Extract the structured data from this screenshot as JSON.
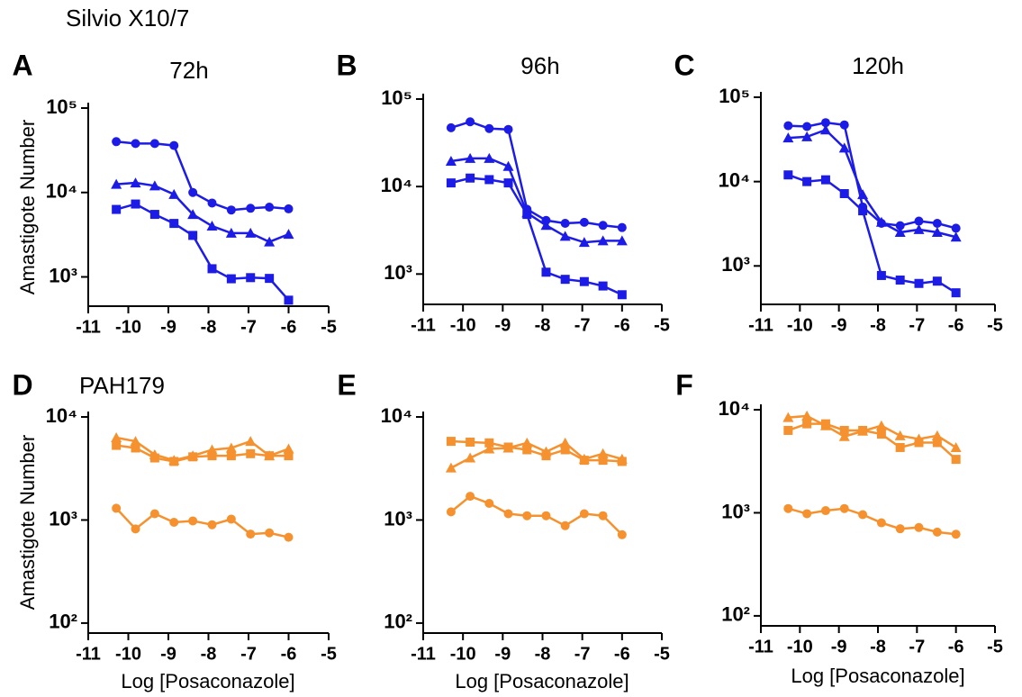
{
  "chart_data": [
    {
      "type": "line",
      "panel_label": "A",
      "title": "72h",
      "annotation": "Silvio X10/7",
      "ylabel": "Amastigote Number",
      "log_y": true,
      "x": [
        -10.3,
        -9.82,
        -9.34,
        -8.86,
        -8.39,
        -7.91,
        -7.43,
        -6.95,
        -6.48,
        -6
      ],
      "series": [
        {
          "marker": "circle",
          "color": "#1c1ce6",
          "values": [
            40000,
            38000,
            38000,
            36000,
            10000,
            7500,
            6200,
            6500,
            6700,
            6400
          ]
        },
        {
          "marker": "triangle",
          "color": "#1c1ce6",
          "values": [
            12500,
            13000,
            12000,
            9500,
            5500,
            4000,
            3300,
            3300,
            2600,
            3200
          ]
        },
        {
          "marker": "square",
          "color": "#1c1ce6",
          "values": [
            6300,
            7300,
            5500,
            4300,
            3100,
            1250,
            950,
            980,
            960,
            530
          ]
        }
      ],
      "xlim": [
        -11,
        -5
      ],
      "xticks": [
        -11,
        -10,
        -9,
        -8,
        -7,
        -6,
        -5
      ],
      "ylim": [
        450,
        100000
      ],
      "yticks": [
        {
          "value": 1000,
          "label": "10³"
        },
        {
          "value": 10000,
          "label": "10⁴"
        },
        {
          "value": 100000,
          "label": "10⁵"
        }
      ]
    },
    {
      "type": "line",
      "panel_label": "B",
      "title": "96h",
      "log_y": true,
      "x": [
        -10.3,
        -9.82,
        -9.34,
        -8.86,
        -8.39,
        -7.91,
        -7.43,
        -6.95,
        -6.48,
        -6
      ],
      "series": [
        {
          "marker": "circle",
          "color": "#1c1ce6",
          "values": [
            47000,
            55000,
            46000,
            45000,
            5500,
            4100,
            3800,
            3900,
            3600,
            3400
          ]
        },
        {
          "marker": "triangle",
          "color": "#1c1ce6",
          "values": [
            19500,
            21000,
            21000,
            17000,
            5000,
            3600,
            2700,
            2300,
            2400,
            2400
          ]
        },
        {
          "marker": "square",
          "color": "#1c1ce6",
          "values": [
            11000,
            12500,
            12000,
            11000,
            4800,
            1050,
            870,
            820,
            730,
            580
          ]
        }
      ],
      "xlim": [
        -11,
        -5
      ],
      "xticks": [
        -11,
        -10,
        -9,
        -8,
        -7,
        -6,
        -5
      ],
      "ylim": [
        450,
        100000
      ],
      "yticks": [
        {
          "value": 1000,
          "label": "10³"
        },
        {
          "value": 10000,
          "label": "10⁴"
        },
        {
          "value": 100000,
          "label": "10⁵"
        }
      ]
    },
    {
      "type": "line",
      "panel_label": "C",
      "title": "120h",
      "log_y": true,
      "x": [
        -10.3,
        -9.82,
        -9.34,
        -8.86,
        -8.39,
        -7.91,
        -7.43,
        -6.95,
        -6.48,
        -6
      ],
      "series": [
        {
          "marker": "circle",
          "color": "#1c1ce6",
          "values": [
            46000,
            45000,
            50000,
            47000,
            5000,
            3200,
            3000,
            3400,
            3200,
            2800
          ]
        },
        {
          "marker": "triangle",
          "color": "#1c1ce6",
          "values": [
            33000,
            34000,
            41000,
            25000,
            7000,
            3300,
            2500,
            2700,
            2500,
            2200
          ]
        },
        {
          "marker": "square",
          "color": "#1c1ce6",
          "values": [
            12000,
            10000,
            10500,
            7200,
            4500,
            770,
            680,
            620,
            660,
            480
          ]
        }
      ],
      "xlim": [
        -11,
        -5
      ],
      "xticks": [
        -11,
        -10,
        -9,
        -8,
        -7,
        -6,
        -5
      ],
      "ylim": [
        350,
        100000
      ],
      "yticks": [
        {
          "value": 1000,
          "label": "10³"
        },
        {
          "value": 10000,
          "label": "10⁴"
        },
        {
          "value": 100000,
          "label": "10⁵"
        }
      ]
    },
    {
      "type": "line",
      "panel_label": "D",
      "annotation": "PAH179",
      "ylabel": "Amastigote Number",
      "xlabel": "Log [Posaconazole]",
      "log_y": true,
      "x": [
        -10.3,
        -9.82,
        -9.34,
        -8.86,
        -8.39,
        -7.91,
        -7.43,
        -6.95,
        -6.48,
        -6
      ],
      "series": [
        {
          "marker": "circle",
          "color": "#f5922f",
          "values": [
            1300,
            820,
            1150,
            950,
            980,
            900,
            1020,
            730,
            750,
            680
          ]
        },
        {
          "marker": "triangle",
          "color": "#f5922f",
          "values": [
            6300,
            5800,
            4300,
            3800,
            4200,
            4800,
            5000,
            5800,
            4200,
            4900
          ]
        },
        {
          "marker": "square",
          "color": "#f5922f",
          "values": [
            5300,
            5000,
            4000,
            3700,
            4100,
            4200,
            4200,
            4400,
            4200,
            4200
          ]
        }
      ],
      "xlim": [
        -11,
        -5
      ],
      "xticks": [
        -11,
        -10,
        -9,
        -8,
        -7,
        -6,
        -5
      ],
      "ylim": [
        80,
        10000
      ],
      "yticks": [
        {
          "value": 100,
          "label": "10²"
        },
        {
          "value": 1000,
          "label": "10³"
        },
        {
          "value": 10000,
          "label": "10⁴"
        }
      ]
    },
    {
      "type": "line",
      "panel_label": "E",
      "xlabel": "Log [Posaconazole]",
      "log_y": true,
      "x": [
        -10.3,
        -9.82,
        -9.34,
        -8.86,
        -8.39,
        -7.91,
        -7.43,
        -6.95,
        -6.48,
        -6
      ],
      "series": [
        {
          "marker": "circle",
          "color": "#f5922f",
          "values": [
            1200,
            1700,
            1450,
            1150,
            1100,
            1100,
            880,
            1150,
            1100,
            720
          ]
        },
        {
          "marker": "triangle",
          "color": "#f5922f",
          "values": [
            3200,
            4000,
            4900,
            5000,
            5600,
            4600,
            5600,
            3900,
            4400,
            3900
          ]
        },
        {
          "marker": "square",
          "color": "#f5922f",
          "values": [
            5800,
            5700,
            5600,
            5100,
            4800,
            4200,
            4800,
            3800,
            3800,
            3700
          ]
        }
      ],
      "xlim": [
        -11,
        -5
      ],
      "xticks": [
        -11,
        -10,
        -9,
        -8,
        -7,
        -6,
        -5
      ],
      "ylim": [
        80,
        10000
      ],
      "yticks": [
        {
          "value": 100,
          "label": "10²"
        },
        {
          "value": 1000,
          "label": "10³"
        },
        {
          "value": 10000,
          "label": "10⁴"
        }
      ]
    },
    {
      "type": "line",
      "panel_label": "F",
      "xlabel": "Log [Posaconazole]",
      "log_y": true,
      "x": [
        -10.3,
        -9.82,
        -9.34,
        -8.86,
        -8.39,
        -7.91,
        -7.43,
        -6.95,
        -6.48,
        -6
      ],
      "series": [
        {
          "marker": "circle",
          "color": "#f5922f",
          "values": [
            1100,
            980,
            1050,
            1100,
            960,
            800,
            700,
            720,
            650,
            620
          ]
        },
        {
          "marker": "triangle",
          "color": "#f5922f",
          "values": [
            8400,
            8700,
            7000,
            5500,
            6200,
            7000,
            5600,
            5200,
            5600,
            4300
          ]
        },
        {
          "marker": "square",
          "color": "#f5922f",
          "values": [
            6300,
            7300,
            7300,
            6300,
            6300,
            5800,
            4300,
            4800,
            4800,
            3300
          ]
        }
      ],
      "xlim": [
        -11,
        -5
      ],
      "xticks": [
        -11,
        -10,
        -9,
        -8,
        -7,
        -6,
        -5
      ],
      "ylim": [
        80,
        10000
      ],
      "yticks": [
        {
          "value": 100,
          "label": "10²"
        },
        {
          "value": 1000,
          "label": "10³"
        },
        {
          "value": 10000,
          "label": "10⁴"
        }
      ]
    }
  ]
}
